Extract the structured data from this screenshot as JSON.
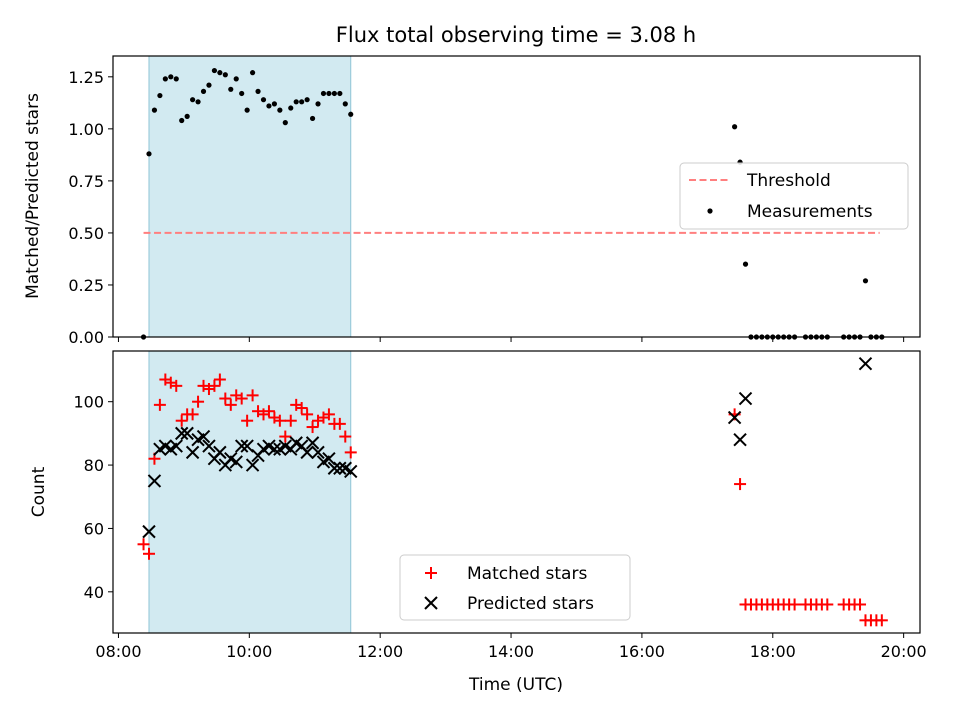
{
  "chart_data": [
    {
      "type": "scatter",
      "title": "Flux total observing time = 3.08 h",
      "xlabel": "",
      "ylabel": "Matched/Predicted stars",
      "xlim": [
        "07:55",
        "20:15"
      ],
      "ylim": [
        0,
        1.35
      ],
      "xticks": [
        "08:00",
        "10:00",
        "12:00",
        "14:00",
        "16:00",
        "18:00",
        "20:00"
      ],
      "xtick_labels_visible": false,
      "yticks": [
        0.0,
        0.25,
        0.5,
        0.75,
        1.0,
        1.25
      ],
      "ytick_labels": [
        "0.00",
        "0.25",
        "0.50",
        "0.75",
        "1.00",
        "1.25"
      ],
      "shaded_span": {
        "x": [
          "08:28",
          "11:33"
        ],
        "color": "#add8e6"
      },
      "threshold": {
        "name": "Threshold",
        "y": 0.5,
        "x": [
          "08:23",
          "19:38"
        ],
        "color": "#ff7f7f"
      },
      "series": [
        {
          "name": "Measurements",
          "color": "#000000",
          "marker": "dot",
          "points": [
            [
              "08:23",
              0.0
            ],
            [
              "08:28",
              0.88
            ],
            [
              "08:33",
              1.09
            ],
            [
              "08:38",
              1.16
            ],
            [
              "08:43",
              1.24
            ],
            [
              "08:48",
              1.25
            ],
            [
              "08:53",
              1.24
            ],
            [
              "08:58",
              1.04
            ],
            [
              "09:03",
              1.06
            ],
            [
              "09:08",
              1.14
            ],
            [
              "09:13",
              1.13
            ],
            [
              "09:18",
              1.18
            ],
            [
              "09:23",
              1.21
            ],
            [
              "09:28",
              1.28
            ],
            [
              "09:33",
              1.27
            ],
            [
              "09:38",
              1.26
            ],
            [
              "09:43",
              1.19
            ],
            [
              "09:48",
              1.24
            ],
            [
              "09:53",
              1.17
            ],
            [
              "09:58",
              1.09
            ],
            [
              "10:03",
              1.27
            ],
            [
              "10:08",
              1.18
            ],
            [
              "10:13",
              1.14
            ],
            [
              "10:18",
              1.11
            ],
            [
              "10:23",
              1.12
            ],
            [
              "10:28",
              1.09
            ],
            [
              "10:33",
              1.03
            ],
            [
              "10:38",
              1.1
            ],
            [
              "10:43",
              1.13
            ],
            [
              "10:48",
              1.13
            ],
            [
              "10:53",
              1.14
            ],
            [
              "10:58",
              1.05
            ],
            [
              "11:03",
              1.12
            ],
            [
              "11:08",
              1.17
            ],
            [
              "11:13",
              1.17
            ],
            [
              "11:18",
              1.17
            ],
            [
              "11:23",
              1.17
            ],
            [
              "11:28",
              1.12
            ],
            [
              "11:33",
              1.07
            ],
            [
              "17:25",
              1.01
            ],
            [
              "17:30",
              0.84
            ],
            [
              "17:35",
              0.35
            ],
            [
              "17:40",
              0.0
            ],
            [
              "17:45",
              0.0
            ],
            [
              "17:50",
              0.0
            ],
            [
              "17:55",
              0.0
            ],
            [
              "18:00",
              0.0
            ],
            [
              "18:05",
              0.0
            ],
            [
              "18:10",
              0.0
            ],
            [
              "18:15",
              0.0
            ],
            [
              "18:20",
              0.0
            ],
            [
              "18:30",
              0.0
            ],
            [
              "18:35",
              0.0
            ],
            [
              "18:40",
              0.0
            ],
            [
              "18:45",
              0.0
            ],
            [
              "18:50",
              0.0
            ],
            [
              "19:05",
              0.0
            ],
            [
              "19:10",
              0.0
            ],
            [
              "19:15",
              0.0
            ],
            [
              "19:20",
              0.0
            ],
            [
              "19:25",
              0.27
            ],
            [
              "19:30",
              0.0
            ],
            [
              "19:35",
              0.0
            ],
            [
              "19:40",
              0.0
            ]
          ]
        }
      ],
      "legend": {
        "position": "center-right",
        "entries": [
          "Threshold",
          "Measurements"
        ]
      }
    },
    {
      "type": "scatter",
      "title": "",
      "xlabel": "Time (UTC)",
      "ylabel": "Count",
      "xlim": [
        "07:55",
        "20:15"
      ],
      "ylim": [
        27,
        116
      ],
      "xticks": [
        "08:00",
        "10:00",
        "12:00",
        "14:00",
        "16:00",
        "18:00",
        "20:00"
      ],
      "xtick_labels": [
        "08:00",
        "10:00",
        "12:00",
        "14:00",
        "16:00",
        "18:00",
        "20:00"
      ],
      "yticks": [
        40,
        60,
        80,
        100
      ],
      "ytick_labels": [
        "40",
        "60",
        "80",
        "100"
      ],
      "shaded_span": {
        "x": [
          "08:28",
          "11:33"
        ],
        "color": "#add8e6"
      },
      "series": [
        {
          "name": "Matched stars",
          "color": "#ff0000",
          "marker": "plus",
          "points": [
            [
              "08:23",
              55
            ],
            [
              "08:28",
              52
            ],
            [
              "08:33",
              82
            ],
            [
              "08:38",
              99
            ],
            [
              "08:43",
              107
            ],
            [
              "08:48",
              106
            ],
            [
              "08:53",
              105
            ],
            [
              "08:58",
              94
            ],
            [
              "09:03",
              96
            ],
            [
              "09:08",
              96
            ],
            [
              "09:13",
              100
            ],
            [
              "09:18",
              105
            ],
            [
              "09:23",
              104
            ],
            [
              "09:28",
              105
            ],
            [
              "09:33",
              107
            ],
            [
              "09:38",
              101
            ],
            [
              "09:43",
              99
            ],
            [
              "09:48",
              102
            ],
            [
              "09:53",
              101
            ],
            [
              "09:58",
              94
            ],
            [
              "10:03",
              102
            ],
            [
              "10:08",
              97
            ],
            [
              "10:13",
              96
            ],
            [
              "10:18",
              97
            ],
            [
              "10:23",
              95
            ],
            [
              "10:28",
              94
            ],
            [
              "10:33",
              89
            ],
            [
              "10:38",
              94
            ],
            [
              "10:43",
              99
            ],
            [
              "10:48",
              98
            ],
            [
              "10:53",
              96
            ],
            [
              "10:58",
              92
            ],
            [
              "11:03",
              94
            ],
            [
              "11:08",
              95
            ],
            [
              "11:13",
              96
            ],
            [
              "11:18",
              93
            ],
            [
              "11:23",
              93
            ],
            [
              "11:28",
              89
            ],
            [
              "11:33",
              84
            ],
            [
              "17:25",
              96
            ],
            [
              "17:30",
              74
            ],
            [
              "17:35",
              36
            ],
            [
              "17:40",
              36
            ],
            [
              "17:45",
              36
            ],
            [
              "17:50",
              36
            ],
            [
              "17:55",
              36
            ],
            [
              "18:00",
              36
            ],
            [
              "18:05",
              36
            ],
            [
              "18:10",
              36
            ],
            [
              "18:15",
              36
            ],
            [
              "18:20",
              36
            ],
            [
              "18:30",
              36
            ],
            [
              "18:35",
              36
            ],
            [
              "18:40",
              36
            ],
            [
              "18:45",
              36
            ],
            [
              "18:50",
              36
            ],
            [
              "19:05",
              36
            ],
            [
              "19:10",
              36
            ],
            [
              "19:15",
              36
            ],
            [
              "19:20",
              36
            ],
            [
              "19:25",
              31
            ],
            [
              "19:30",
              31
            ],
            [
              "19:35",
              31
            ],
            [
              "19:40",
              31
            ]
          ]
        },
        {
          "name": "Predicted stars",
          "color": "#000000",
          "marker": "x",
          "points": [
            [
              "08:28",
              59
            ],
            [
              "08:33",
              75
            ],
            [
              "08:38",
              85
            ],
            [
              "08:43",
              86
            ],
            [
              "08:48",
              85
            ],
            [
              "08:53",
              86
            ],
            [
              "08:58",
              90
            ],
            [
              "09:03",
              90
            ],
            [
              "09:08",
              84
            ],
            [
              "09:13",
              88
            ],
            [
              "09:18",
              89
            ],
            [
              "09:23",
              86
            ],
            [
              "09:28",
              82
            ],
            [
              "09:33",
              84
            ],
            [
              "09:38",
              80
            ],
            [
              "09:43",
              82
            ],
            [
              "09:48",
              81
            ],
            [
              "09:53",
              86
            ],
            [
              "09:58",
              86
            ],
            [
              "10:03",
              80
            ],
            [
              "10:08",
              83
            ],
            [
              "10:13",
              85
            ],
            [
              "10:18",
              86
            ],
            [
              "10:23",
              85
            ],
            [
              "10:28",
              85
            ],
            [
              "10:33",
              86
            ],
            [
              "10:38",
              85
            ],
            [
              "10:43",
              87
            ],
            [
              "10:48",
              86
            ],
            [
              "10:53",
              84
            ],
            [
              "10:58",
              87
            ],
            [
              "11:03",
              84
            ],
            [
              "11:08",
              81
            ],
            [
              "11:13",
              82
            ],
            [
              "11:18",
              79
            ],
            [
              "11:23",
              79
            ],
            [
              "11:28",
              79
            ],
            [
              "11:33",
              78
            ],
            [
              "17:25",
              95
            ],
            [
              "17:30",
              88
            ],
            [
              "17:35",
              101
            ],
            [
              "19:25",
              112
            ]
          ]
        }
      ],
      "legend": {
        "position": "bottom-center",
        "entries": [
          "Matched stars",
          "Predicted stars"
        ]
      }
    }
  ]
}
